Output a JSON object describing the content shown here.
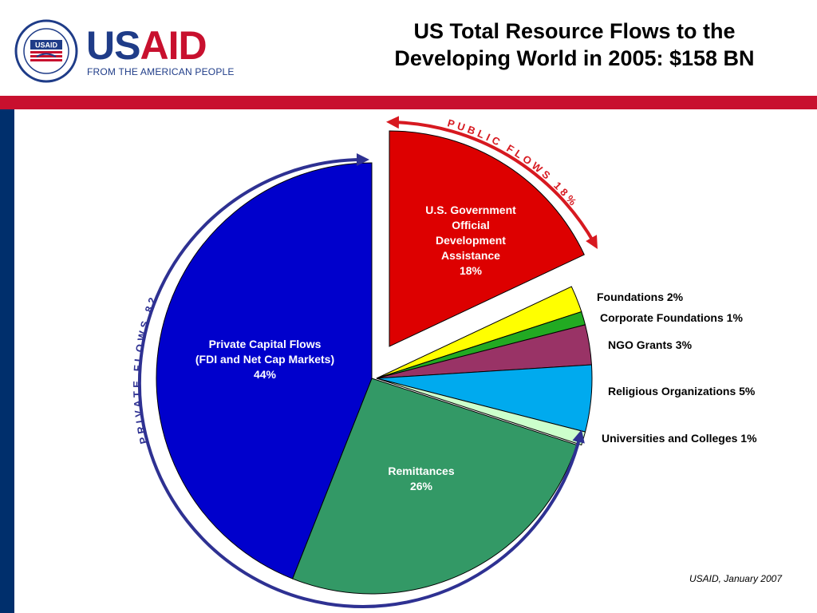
{
  "header": {
    "logo_word_us": "US",
    "logo_word_aid": "AID",
    "tagline": "FROM THE AMERICAN PEOPLE",
    "seal_badge": "USAID",
    "title_line1": "US Total Resource Flows to the",
    "title_line2": "Developing World in 2005: $158 BN"
  },
  "colors": {
    "brand_red": "#c8102e",
    "brand_navy": "#002f6c",
    "arc_private": "#2e3192",
    "arc_public": "#d71920"
  },
  "chart_data": {
    "type": "pie",
    "title": "US Total Resource Flows to the Developing World in 2005: $158 BN",
    "unit": "%",
    "slices": [
      {
        "name": "U.S. Government Official Development Assistance",
        "value": 18,
        "color": "#dd0000",
        "exploded": true,
        "label_lines": [
          "U.S. Government",
          "Official",
          "Development",
          "Assistance",
          "18%"
        ]
      },
      {
        "name": "Foundations",
        "value": 2,
        "color": "#ffff00",
        "exploded": true,
        "label_lines": [
          "Foundations 2%"
        ]
      },
      {
        "name": "Corporate Foundations",
        "value": 1,
        "color": "#22aa22",
        "exploded": true,
        "label_lines": [
          "Corporate Foundations 1%"
        ]
      },
      {
        "name": "NGO Grants",
        "value": 3,
        "color": "#993366",
        "exploded": true,
        "label_lines": [
          "NGO Grants 3%"
        ]
      },
      {
        "name": "Religious Organizations",
        "value": 5,
        "color": "#00aaee",
        "exploded": true,
        "label_lines": [
          "Religious Organizations 5%"
        ]
      },
      {
        "name": "Universities and Colleges",
        "value": 1,
        "color": "#ccffcc",
        "exploded": true,
        "label_lines": [
          "Universities and Colleges 1%"
        ]
      },
      {
        "name": "Remittances",
        "value": 26,
        "color": "#339966",
        "exploded": false,
        "label_lines": [
          "Remittances",
          "26%"
        ]
      },
      {
        "name": "Private Capital Flows (FDI and Net Cap Markets)",
        "value": 44,
        "color": "#0000cc",
        "exploded": false,
        "label_lines": [
          "Private Capital Flows",
          "(FDI and Net Cap Markets)",
          "44%"
        ]
      }
    ],
    "groups": [
      {
        "label": "PUBLIC FLOWS 18%",
        "value": 18
      },
      {
        "label": "PRIVATE FLOWS 82%",
        "value": 82
      }
    ],
    "legend": "none"
  },
  "footer": {
    "source": "USAID, January 2007"
  }
}
